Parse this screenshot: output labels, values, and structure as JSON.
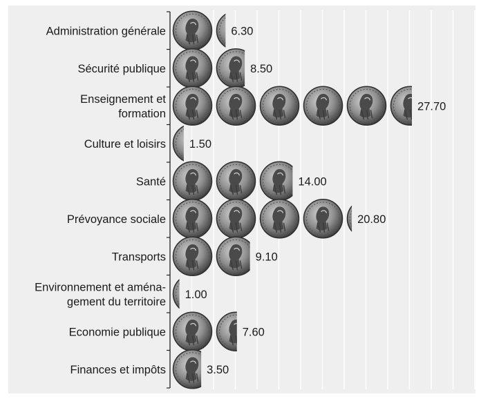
{
  "chart_data": {
    "type": "bar",
    "orientation": "horizontal",
    "categories": [
      [
        "Administration générale"
      ],
      [
        "Sécurité publique"
      ],
      [
        "Enseignement et",
        "formation"
      ],
      [
        "Culture et loisirs"
      ],
      [
        "Santé"
      ],
      [
        "Prévoyance sociale"
      ],
      [
        "Transports"
      ],
      [
        "Environnement et aména-",
        "gement du territoire"
      ],
      [
        "Economie publique"
      ],
      [
        "Finances et impôts"
      ]
    ],
    "values": [
      6.3,
      8.5,
      27.7,
      1.5,
      14.0,
      20.8,
      9.1,
      1.0,
      7.6,
      3.5
    ],
    "value_labels": [
      "6.30",
      "8.50",
      "27.70",
      "1.50",
      "14.00",
      "20.80",
      "9.10",
      "1.00",
      "7.60",
      "3.50"
    ],
    "xlim": [
      0,
      30
    ],
    "grid": true,
    "bar_style": "pictogram-coins",
    "colors": {
      "panel_background": "#efefef",
      "gridline": "#ffffff",
      "axis": "#222222",
      "text": "#1a1a1a",
      "coin_face": "#8f8f8f",
      "coin_dark": "#3a3a3a",
      "coin_light": "#d2d2d2"
    }
  }
}
